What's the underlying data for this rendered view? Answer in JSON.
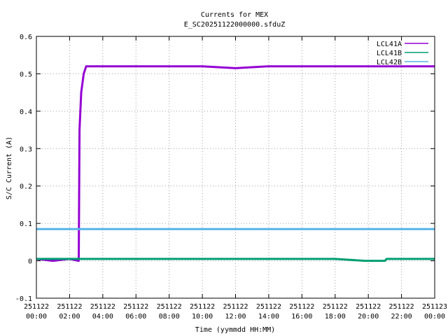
{
  "chart_data": {
    "type": "line",
    "title": "Currents for MEX",
    "subtitle": "E_SC20251122000000.sfduZ",
    "xlabel": "Time (yymmdd HH:MM)",
    "ylabel": "S/C Current (A)",
    "xlim_hours": [
      0,
      24
    ],
    "ylim": [
      -0.1,
      0.6
    ],
    "grid": true,
    "legend_position": "top-right",
    "x_ticks": [
      {
        "date": "251122",
        "time": "00:00",
        "hours": 0
      },
      {
        "date": "251122",
        "time": "02:00",
        "hours": 2
      },
      {
        "date": "251122",
        "time": "04:00",
        "hours": 4
      },
      {
        "date": "251122",
        "time": "06:00",
        "hours": 6
      },
      {
        "date": "251122",
        "time": "08:00",
        "hours": 8
      },
      {
        "date": "251122",
        "time": "10:00",
        "hours": 10
      },
      {
        "date": "251122",
        "time": "12:00",
        "hours": 12
      },
      {
        "date": "251122",
        "time": "14:00",
        "hours": 14
      },
      {
        "date": "251122",
        "time": "16:00",
        "hours": 16
      },
      {
        "date": "251122",
        "time": "18:00",
        "hours": 18
      },
      {
        "date": "251122",
        "time": "20:00",
        "hours": 20
      },
      {
        "date": "251122",
        "time": "22:00",
        "hours": 22
      },
      {
        "date": "251123",
        "time": "00:00",
        "hours": 24
      }
    ],
    "y_ticks": [
      {
        "label": "-0.1",
        "value": -0.1
      },
      {
        "label": "0",
        "value": 0
      },
      {
        "label": "0.1",
        "value": 0.1
      },
      {
        "label": "0.2",
        "value": 0.2
      },
      {
        "label": "0.3",
        "value": 0.3
      },
      {
        "label": "0.4",
        "value": 0.4
      },
      {
        "label": "0.5",
        "value": 0.5
      },
      {
        "label": "0.6",
        "value": 0.6
      }
    ],
    "series": [
      {
        "name": "LCL41A",
        "color": "#9400d3",
        "points": [
          {
            "hours": 0.0,
            "value": 0.005
          },
          {
            "hours": 1.0,
            "value": 0.0
          },
          {
            "hours": 2.0,
            "value": 0.005
          },
          {
            "hours": 2.55,
            "value": 0.0
          },
          {
            "hours": 2.6,
            "value": 0.35
          },
          {
            "hours": 2.7,
            "value": 0.45
          },
          {
            "hours": 2.85,
            "value": 0.5
          },
          {
            "hours": 3.0,
            "value": 0.52
          },
          {
            "hours": 6.0,
            "value": 0.52
          },
          {
            "hours": 8.0,
            "value": 0.52
          },
          {
            "hours": 10.0,
            "value": 0.52
          },
          {
            "hours": 12.0,
            "value": 0.515
          },
          {
            "hours": 14.0,
            "value": 0.52
          },
          {
            "hours": 16.0,
            "value": 0.52
          },
          {
            "hours": 18.0,
            "value": 0.52
          },
          {
            "hours": 20.0,
            "value": 0.52
          },
          {
            "hours": 22.0,
            "value": 0.52
          },
          {
            "hours": 24.0,
            "value": 0.52
          }
        ]
      },
      {
        "name": "LCL41B",
        "color": "#009e73",
        "points": [
          {
            "hours": 0.0,
            "value": 0.005
          },
          {
            "hours": 6.0,
            "value": 0.005
          },
          {
            "hours": 12.0,
            "value": 0.005
          },
          {
            "hours": 18.0,
            "value": 0.005
          },
          {
            "hours": 19.8,
            "value": 0.0
          },
          {
            "hours": 21.0,
            "value": 0.0
          },
          {
            "hours": 21.1,
            "value": 0.005
          },
          {
            "hours": 24.0,
            "value": 0.005
          }
        ]
      },
      {
        "name": "LCL42B",
        "color": "#56b4e9",
        "points": [
          {
            "hours": 0.0,
            "value": 0.085
          },
          {
            "hours": 12.0,
            "value": 0.085
          },
          {
            "hours": 24.0,
            "value": 0.085
          }
        ]
      }
    ]
  }
}
